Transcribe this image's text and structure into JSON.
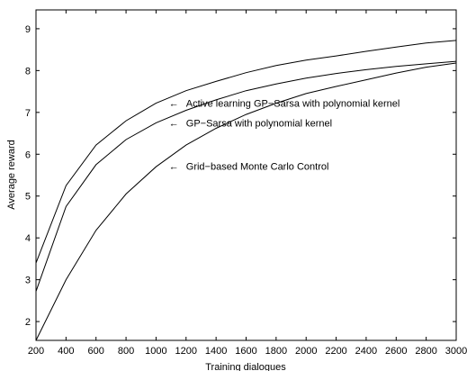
{
  "chart_data": {
    "type": "line",
    "title": "",
    "xlabel": "Training dialogues",
    "ylabel": "Average reward",
    "xlim": [
      200,
      3000
    ],
    "ylim": [
      1.55,
      9.45
    ],
    "xticks": [
      200,
      400,
      600,
      800,
      1000,
      1200,
      1400,
      1600,
      1800,
      2000,
      2200,
      2400,
      2600,
      2800,
      3000
    ],
    "yticks": [
      2,
      3,
      4,
      5,
      6,
      7,
      8,
      9
    ],
    "grid": false,
    "legend": "inline annotations with arrows",
    "series": [
      {
        "name": "Active learning GP−Sarsa with polynomial kernel",
        "x": [
          200,
          400,
          600,
          800,
          1000,
          1200,
          1400,
          1600,
          1800,
          2000,
          2200,
          2400,
          2600,
          2800,
          3000
        ],
        "y": [
          3.4,
          5.25,
          6.22,
          6.8,
          7.22,
          7.52,
          7.74,
          7.95,
          8.12,
          8.25,
          8.35,
          8.46,
          8.56,
          8.66,
          8.72
        ]
      },
      {
        "name": "GP−Sarsa with polynomial kernel",
        "x": [
          200,
          400,
          600,
          800,
          1000,
          1200,
          1400,
          1600,
          1800,
          2000,
          2200,
          2400,
          2600,
          2800,
          3000
        ],
        "y": [
          2.72,
          4.75,
          5.75,
          6.35,
          6.75,
          7.05,
          7.3,
          7.52,
          7.68,
          7.82,
          7.93,
          8.02,
          8.1,
          8.16,
          8.22
        ]
      },
      {
        "name": "Grid−based Monte Carlo Control",
        "x": [
          200,
          400,
          600,
          800,
          1000,
          1200,
          1400,
          1600,
          1800,
          2000,
          2200,
          2400,
          2600,
          2800,
          3000
        ],
        "y": [
          1.55,
          3.0,
          4.18,
          5.05,
          5.7,
          6.22,
          6.62,
          6.95,
          7.22,
          7.45,
          7.62,
          7.78,
          7.94,
          8.08,
          8.18
        ]
      }
    ],
    "annotations": [
      {
        "text": "Active learning GP−Sarsa with polynomial kernel",
        "x": 1050,
        "y": 7.22
      },
      {
        "text": "GP−Sarsa with polynomial kernel",
        "x": 1050,
        "y": 6.75
      },
      {
        "text": "Grid−based Monte Carlo Control",
        "x": 1050,
        "y": 5.72
      }
    ]
  }
}
